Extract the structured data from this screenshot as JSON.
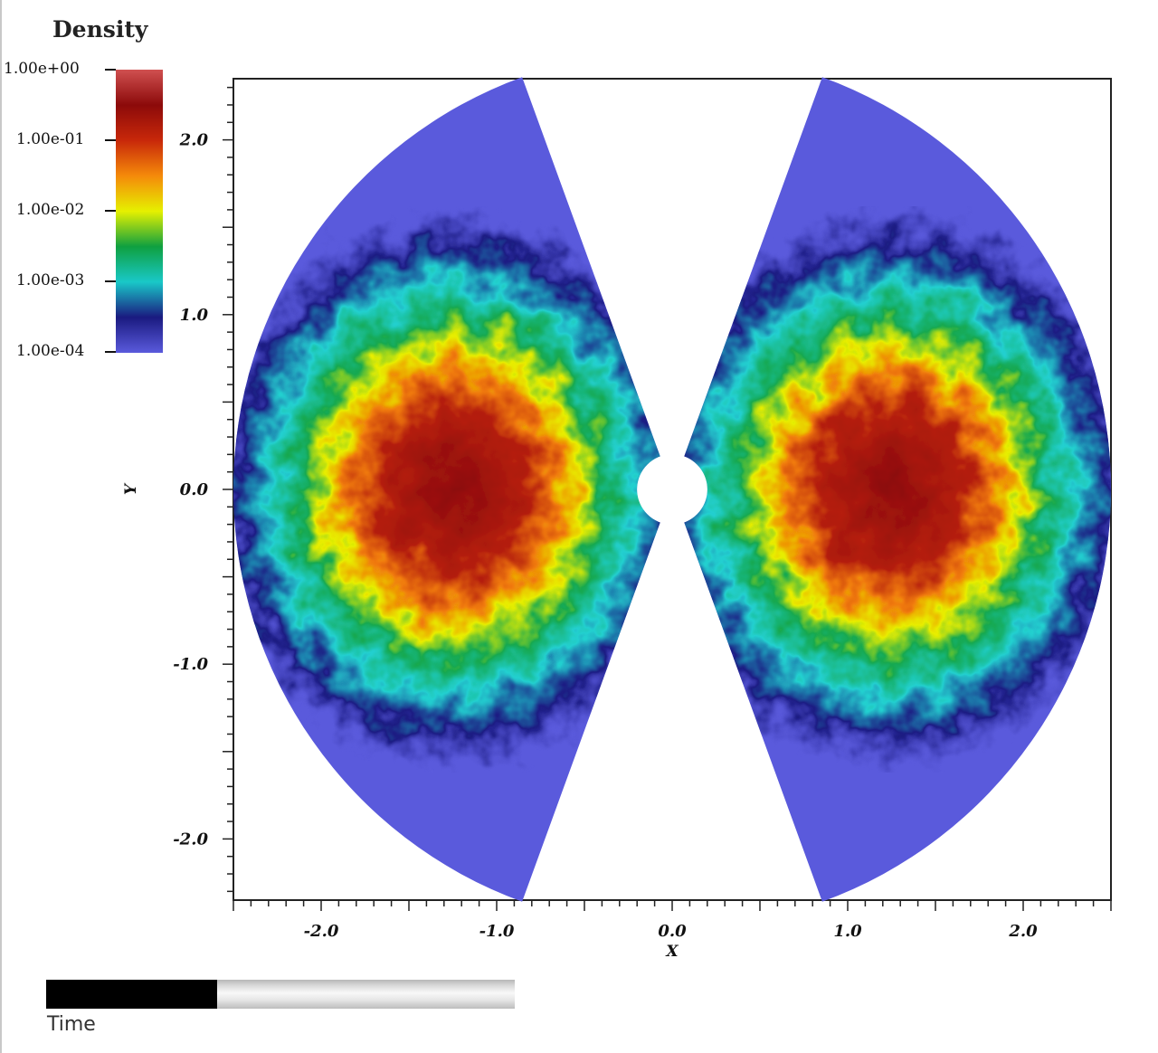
{
  "legend": {
    "title": "Density",
    "tick_labels": [
      "1.00e+00",
      "1.00e-01",
      "1.00e-02",
      "1.00e-03",
      "1.00e-04"
    ],
    "scale": "log",
    "range": [
      0.0001,
      1.0
    ],
    "colors": [
      "#5a5adc",
      "#1a1a80",
      "#19c8c8",
      "#0fa040",
      "#e6f000",
      "#f58a0a",
      "#c8280a",
      "#8c0a0a",
      "#d05050"
    ]
  },
  "time_slider": {
    "label": "Time",
    "progress": 0.365
  },
  "chart_data": {
    "type": "heatmap",
    "title": "",
    "xlabel": "X",
    "ylabel": "Y",
    "xlim": [
      -2.5,
      2.5
    ],
    "ylim": [
      -2.35,
      2.35
    ],
    "x_ticks": [
      "-2.0",
      "-1.0",
      "0.0",
      "1.0",
      "2.0"
    ],
    "y_ticks": [
      "2.0",
      "1.0",
      "0.0",
      "-1.0",
      "-2.0"
    ],
    "x_tick_values": [
      -2.0,
      -1.0,
      0.0,
      1.0,
      2.0
    ],
    "y_tick_values": [
      2.0,
      1.0,
      0.0,
      -1.0,
      -2.0
    ],
    "colorbar": {
      "title": "Density",
      "min": 0.0001,
      "max": 1.0,
      "scale": "log"
    },
    "domain": {
      "outer_radius": 2.5,
      "inner_radius": 0.2,
      "wedges_half_angle_deg": 70,
      "wedge_centers_deg": [
        0,
        180
      ]
    },
    "grid": false
  }
}
